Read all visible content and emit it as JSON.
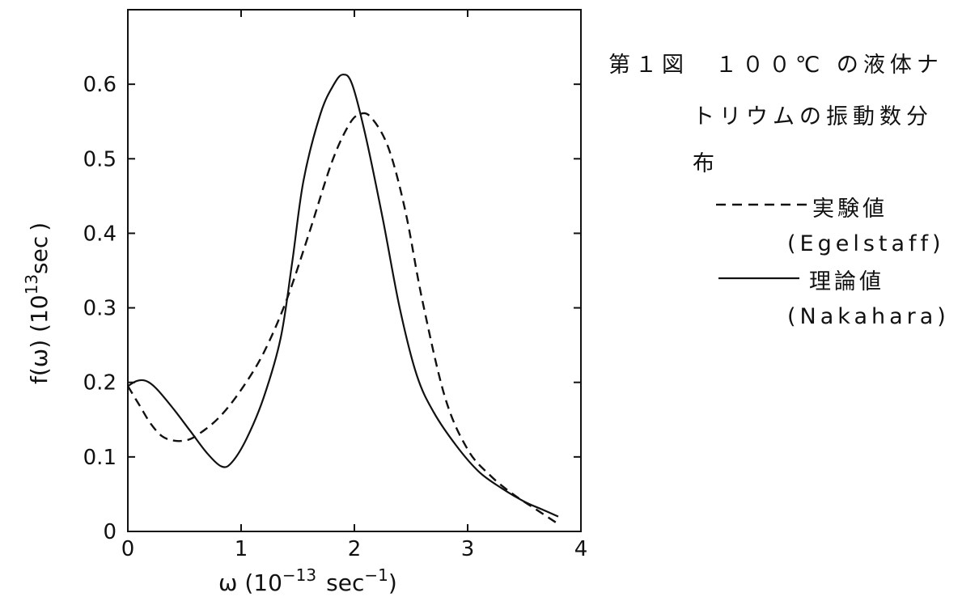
{
  "chart_data": {
    "type": "line",
    "caption": [
      "第１図　１００℃ の液体ナ",
      "トリウムの振動数分",
      "布"
    ],
    "xlabel": "ω (10",
    "xlabel_exp": "−13",
    "xlabel_unit": "sec",
    "xlabel_unit_exp": "−1",
    "xlabel_close": ")",
    "ylabel": "f(ω) (10",
    "ylabel_exp": "13",
    "ylabel_unit": "sec",
    "ylabel_close": ")",
    "xlim": [
      0,
      4
    ],
    "ylim": [
      0,
      0.7
    ],
    "xticks": [
      0,
      1,
      2,
      3,
      4
    ],
    "xtick_labels": [
      "0",
      "1",
      "2",
      "3",
      "4"
    ],
    "yticks": [
      0,
      0.1,
      0.2,
      0.3,
      0.4,
      0.5,
      0.6
    ],
    "ytick_labels": [
      "0",
      "0.1",
      "0.2",
      "0.3",
      "0.4",
      "0.5",
      "0.6"
    ],
    "grid": false,
    "series": [
      {
        "name": "実験値",
        "source": "(Egelstaff)",
        "style": "dashed",
        "color": "#111111",
        "points": [
          [
            0,
            0.195
          ],
          [
            0.1,
            0.17
          ],
          [
            0.2,
            0.145
          ],
          [
            0.3,
            0.128
          ],
          [
            0.4,
            0.122
          ],
          [
            0.5,
            0.122
          ],
          [
            0.6,
            0.128
          ],
          [
            0.8,
            0.152
          ],
          [
            1.0,
            0.19
          ],
          [
            1.2,
            0.24
          ],
          [
            1.4,
            0.31
          ],
          [
            1.6,
            0.4
          ],
          [
            1.8,
            0.495
          ],
          [
            1.95,
            0.545
          ],
          [
            2.05,
            0.56
          ],
          [
            2.15,
            0.555
          ],
          [
            2.3,
            0.515
          ],
          [
            2.45,
            0.43
          ],
          [
            2.6,
            0.31
          ],
          [
            2.8,
            0.18
          ],
          [
            3.0,
            0.11
          ],
          [
            3.2,
            0.075
          ],
          [
            3.4,
            0.05
          ],
          [
            3.6,
            0.03
          ],
          [
            3.8,
            0.01
          ]
        ]
      },
      {
        "name": "理論値",
        "source": "(Nakahara)",
        "style": "solid",
        "color": "#111111",
        "points": [
          [
            0,
            0.195
          ],
          [
            0.08,
            0.202
          ],
          [
            0.16,
            0.202
          ],
          [
            0.25,
            0.192
          ],
          [
            0.4,
            0.165
          ],
          [
            0.55,
            0.135
          ],
          [
            0.7,
            0.105
          ],
          [
            0.83,
            0.087
          ],
          [
            0.92,
            0.093
          ],
          [
            1.05,
            0.125
          ],
          [
            1.2,
            0.18
          ],
          [
            1.35,
            0.26
          ],
          [
            1.45,
            0.36
          ],
          [
            1.55,
            0.47
          ],
          [
            1.7,
            0.56
          ],
          [
            1.82,
            0.6
          ],
          [
            1.9,
            0.613
          ],
          [
            1.98,
            0.6
          ],
          [
            2.1,
            0.53
          ],
          [
            2.25,
            0.42
          ],
          [
            2.4,
            0.3
          ],
          [
            2.55,
            0.21
          ],
          [
            2.7,
            0.16
          ],
          [
            2.9,
            0.115
          ],
          [
            3.1,
            0.08
          ],
          [
            3.3,
            0.058
          ],
          [
            3.5,
            0.04
          ],
          [
            3.65,
            0.03
          ],
          [
            3.8,
            0.02
          ]
        ]
      }
    ]
  }
}
